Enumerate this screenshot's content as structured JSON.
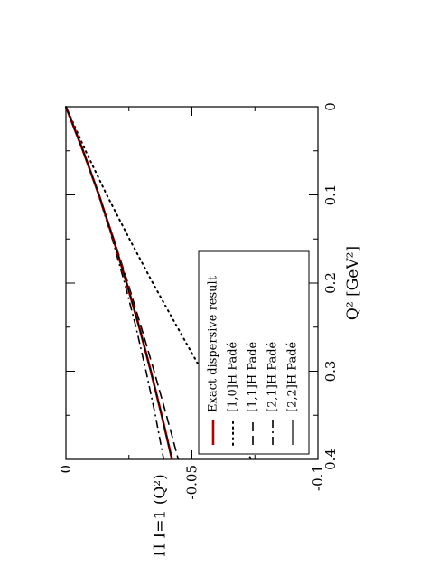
{
  "chart_data": {
    "type": "line",
    "orientation": "rotated-90-clockwise",
    "xlabel": "Q² [GeV²]",
    "ylabel": "Π̄ I=1 (Q²)",
    "xlim": [
      0,
      0.4
    ],
    "ylim": [
      -0.1,
      0
    ],
    "x_ticks": [
      "0",
      "0.1",
      "0.2",
      "0.3",
      "0.4"
    ],
    "y_ticks": [
      "0",
      "-0.05",
      "-0.1"
    ],
    "grid": false,
    "legend_position": "lower-right",
    "series": [
      {
        "name": "Exact dispersive result",
        "color": "#b00000",
        "style": "solid-thick",
        "x": [
          0,
          0.05,
          0.1,
          0.15,
          0.2,
          0.25,
          0.3,
          0.35,
          0.4
        ],
        "y": [
          0,
          -0.0068,
          -0.0131,
          -0.0188,
          -0.0241,
          -0.0291,
          -0.0337,
          -0.038,
          -0.0421
        ]
      },
      {
        "name": "[1,0]H Padé",
        "color": "#000000",
        "style": "dotted",
        "x": [
          0,
          0.05,
          0.1,
          0.15,
          0.2,
          0.25,
          0.3,
          0.35,
          0.4
        ],
        "y": [
          0,
          -0.0078,
          -0.0162,
          -0.0252,
          -0.0345,
          -0.0442,
          -0.054,
          -0.0638,
          -0.0735
        ]
      },
      {
        "name": "[1,1]H Padé",
        "color": "#000000",
        "style": "dashed",
        "x": [
          0,
          0.05,
          0.1,
          0.15,
          0.2,
          0.25,
          0.3,
          0.35,
          0.4
        ],
        "y": [
          0,
          -0.0068,
          -0.0131,
          -0.019,
          -0.0246,
          -0.0299,
          -0.035,
          -0.0399,
          -0.0446
        ]
      },
      {
        "name": "[2,1]H Padé",
        "color": "#000000",
        "style": "dash-dot",
        "x": [
          0,
          0.05,
          0.1,
          0.15,
          0.2,
          0.25,
          0.3,
          0.35,
          0.4
        ],
        "y": [
          0,
          -0.0068,
          -0.0129,
          -0.0184,
          -0.0233,
          -0.0278,
          -0.0318,
          -0.0355,
          -0.0388
        ]
      },
      {
        "name": "[2,2]H Padé",
        "color": "#000000",
        "style": "solid",
        "x": [
          0,
          0.05,
          0.1,
          0.15,
          0.2,
          0.25,
          0.3,
          0.35,
          0.4
        ],
        "y": [
          0,
          -0.0068,
          -0.0131,
          -0.0188,
          -0.0241,
          -0.0291,
          -0.0337,
          -0.038,
          -0.0421
        ]
      }
    ]
  }
}
